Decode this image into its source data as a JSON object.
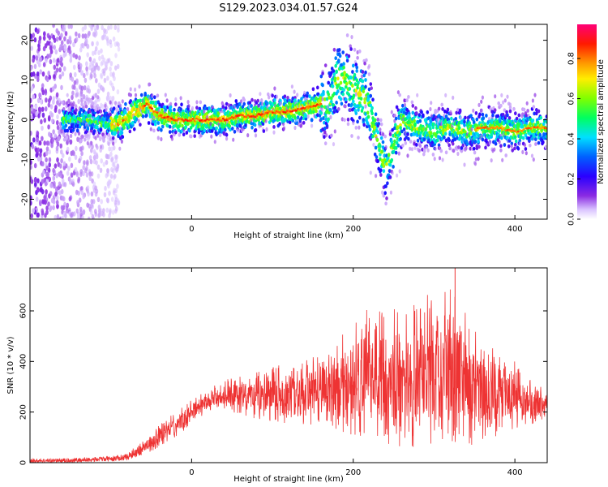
{
  "title": "S129.2023.034.01.57.G24",
  "chart_data": [
    {
      "type": "heatmap",
      "title": "S129.2023.034.01.57.G24",
      "xlabel": "Height of straight line (km)",
      "ylabel": "Frequency (Hz)",
      "xlim": [
        -200,
        440
      ],
      "ylim": [
        -25,
        24
      ],
      "xticks": [
        0,
        200,
        400
      ],
      "yticks": [
        -20,
        -10,
        0,
        10,
        20
      ],
      "colorbar": {
        "label": "Normalized spectral amplitude",
        "range": [
          0.0,
          0.97
        ],
        "ticks": [
          "0.0",
          "0.2",
          "0.4",
          "0.6",
          "0.8"
        ],
        "colormap": "hsv-rainbow: white/lavender (0) → purple → blue → cyan → green → yellow → orange → red → pink (max)"
      },
      "frequency_ridge": {
        "x": [
          -150,
          -130,
          -110,
          -90,
          -70,
          -55,
          -40,
          -20,
          0,
          20,
          40,
          60,
          80,
          100,
          120,
          140,
          160,
          170,
          180,
          190,
          200,
          210,
          220,
          230,
          240,
          250,
          260,
          280,
          300,
          320,
          340,
          360,
          380,
          400,
          420,
          440
        ],
        "y": [
          0,
          0,
          -1,
          -1,
          2,
          4,
          1,
          0,
          0,
          0,
          0,
          1,
          1,
          2,
          2,
          3,
          4,
          4,
          10,
          11,
          8,
          6,
          3,
          -5,
          -13,
          -6,
          0,
          -2,
          -3,
          -2,
          -3,
          -2,
          -2,
          -3,
          -2,
          -2
        ]
      },
      "noise_region_x": [
        -200,
        -100
      ]
    },
    {
      "type": "line",
      "xlabel": "Height of straight line (km)",
      "ylabel": "SNR (10 * v/v)",
      "xlim": [
        -200,
        440
      ],
      "ylim": [
        0,
        770
      ],
      "xticks": [
        0,
        200,
        400
      ],
      "yticks": [
        0,
        200,
        400,
        600
      ],
      "line_color": "#ee3333",
      "envelope_x": [
        -200,
        -150,
        -100,
        -80,
        -60,
        -40,
        -20,
        0,
        20,
        40,
        60,
        80,
        100,
        120,
        140,
        160,
        180,
        200,
        220,
        240,
        260,
        280,
        300,
        320,
        340,
        360,
        380,
        400,
        420,
        440
      ],
      "envelope_upper": [
        15,
        18,
        25,
        35,
        90,
        150,
        200,
        250,
        290,
        330,
        350,
        360,
        380,
        400,
        410,
        430,
        480,
        560,
        620,
        600,
        620,
        650,
        690,
        770,
        600,
        480,
        460,
        400,
        330,
        280
      ],
      "envelope_lower": [
        0,
        0,
        5,
        10,
        30,
        60,
        100,
        150,
        200,
        210,
        190,
        170,
        160,
        150,
        150,
        140,
        130,
        100,
        80,
        70,
        60,
        60,
        60,
        60,
        60,
        80,
        100,
        120,
        150,
        160
      ],
      "peak": {
        "x": 326,
        "y": 770
      }
    }
  ]
}
